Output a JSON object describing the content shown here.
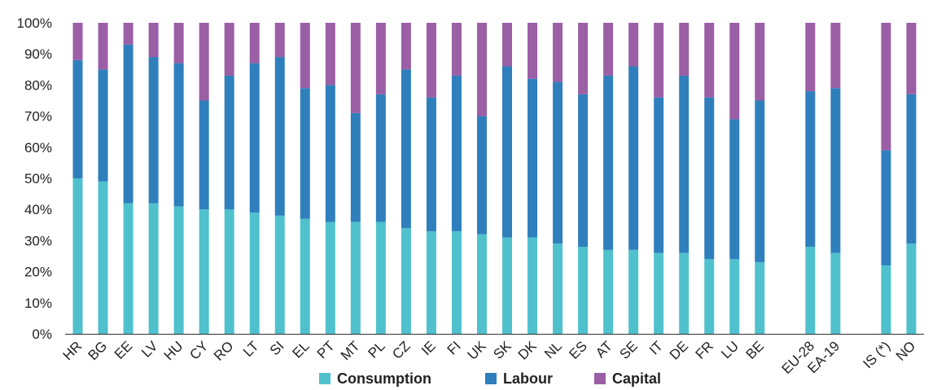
{
  "chart_data": {
    "type": "bar",
    "stacked": true,
    "percent_stacked": true,
    "categories": [
      "HR",
      "BG",
      "EE",
      "LV",
      "HU",
      "CY",
      "RO",
      "LT",
      "SI",
      "EL",
      "PT",
      "MT",
      "PL",
      "CZ",
      "IE",
      "FI",
      "UK",
      "SK",
      "DK",
      "NL",
      "ES",
      "AT",
      "SE",
      "IT",
      "DE",
      "FR",
      "LU",
      "BE",
      "",
      "EU-28",
      "EA-19",
      "",
      "IS (*)",
      "NO"
    ],
    "series": [
      {
        "name": "Consumption",
        "color": "#4fc1cd",
        "values": [
          50,
          49,
          42,
          42,
          41,
          40,
          40,
          39,
          38,
          37,
          36,
          36,
          36,
          34,
          33,
          33,
          32,
          31,
          31,
          29,
          28,
          27,
          27,
          26,
          26,
          24,
          24,
          23,
          null,
          28,
          26,
          null,
          22,
          29
        ]
      },
      {
        "name": "Labour",
        "color": "#2f7fbd",
        "values": [
          38,
          36,
          51,
          47,
          46,
          35,
          43,
          48,
          51,
          42,
          44,
          35,
          41,
          51,
          43,
          50,
          38,
          55,
          51,
          52,
          49,
          56,
          59,
          50,
          57,
          52,
          45,
          52,
          null,
          50,
          53,
          null,
          37,
          48
        ]
      },
      {
        "name": "Capital",
        "color": "#9b5fa6",
        "values": [
          12,
          15,
          7,
          11,
          13,
          25,
          17,
          13,
          11,
          21,
          20,
          29,
          23,
          15,
          24,
          17,
          30,
          14,
          18,
          19,
          23,
          17,
          14,
          24,
          17,
          24,
          31,
          25,
          null,
          22,
          21,
          null,
          41,
          23
        ]
      }
    ],
    "yticks": [
      "0%",
      "10%",
      "20%",
      "30%",
      "40%",
      "50%",
      "60%",
      "70%",
      "80%",
      "90%",
      "100%"
    ],
    "ylim": [
      0,
      100
    ],
    "grid": false,
    "legend": "bottom-center",
    "title": "",
    "xlabel": "",
    "ylabel": ""
  }
}
